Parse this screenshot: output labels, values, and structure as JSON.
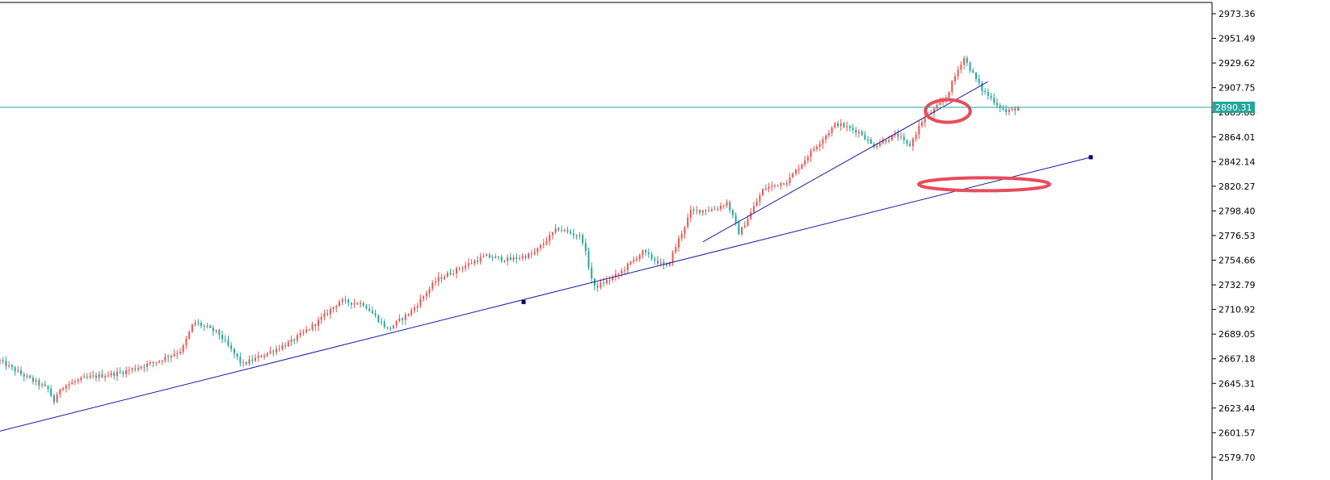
{
  "chart_data": {
    "type": "candlestick",
    "title": "",
    "xlabel": "",
    "ylabel": "",
    "y_axis_side": "right",
    "ylim": [
      2568,
      2985
    ],
    "y_ticks": [
      "2973.36",
      "2951.49",
      "2929.62",
      "2907.75",
      "2885.88",
      "2864.01",
      "2842.14",
      "2820.27",
      "2798.40",
      "2776.53",
      "2754.66",
      "2732.79",
      "2710.92",
      "2689.05",
      "2667.18",
      "2645.31",
      "2623.44",
      "2601.57",
      "2579.70"
    ],
    "current_price": {
      "label": "2890.31",
      "value": 2890.31
    },
    "colors": {
      "up": "#ef5350",
      "down": "#26a69a",
      "trendline": "#1a1aa0",
      "price_line": "#26a69a",
      "highlight_ellipse": "#e84c5a",
      "axis": "#000000"
    },
    "grid": false,
    "series_waypoints": [
      [
        0,
        2665
      ],
      [
        0.02,
        2652
      ],
      [
        0.04,
        2640
      ],
      [
        0.045,
        2628
      ],
      [
        0.05,
        2642
      ],
      [
        0.07,
        2650
      ],
      [
        0.1,
        2655
      ],
      [
        0.13,
        2665
      ],
      [
        0.15,
        2675
      ],
      [
        0.16,
        2700
      ],
      [
        0.18,
        2690
      ],
      [
        0.2,
        2662
      ],
      [
        0.22,
        2672
      ],
      [
        0.24,
        2682
      ],
      [
        0.26,
        2698
      ],
      [
        0.28,
        2718
      ],
      [
        0.3,
        2716
      ],
      [
        0.32,
        2693
      ],
      [
        0.34,
        2710
      ],
      [
        0.36,
        2737
      ],
      [
        0.38,
        2748
      ],
      [
        0.4,
        2758
      ],
      [
        0.42,
        2755
      ],
      [
        0.44,
        2760
      ],
      [
        0.46,
        2783
      ],
      [
        0.48,
        2775
      ],
      [
        0.49,
        2730
      ],
      [
        0.51,
        2742
      ],
      [
        0.53,
        2762
      ],
      [
        0.55,
        2748
      ],
      [
        0.57,
        2798
      ],
      [
        0.59,
        2800
      ],
      [
        0.6,
        2806
      ],
      [
        0.61,
        2778
      ],
      [
        0.63,
        2818
      ],
      [
        0.65,
        2825
      ],
      [
        0.67,
        2852
      ],
      [
        0.69,
        2876
      ],
      [
        0.71,
        2868
      ],
      [
        0.72,
        2856
      ],
      [
        0.74,
        2866
      ],
      [
        0.75,
        2855
      ],
      [
        0.76,
        2877
      ],
      [
        0.78,
        2898
      ],
      [
        0.795,
        2935
      ],
      [
        0.81,
        2906
      ],
      [
        0.83,
        2886
      ],
      [
        0.84,
        2890
      ]
    ],
    "candle_count": 340,
    "trendlines": [
      {
        "name": "long-term-support",
        "x0": 0,
        "y0": 2603,
        "x1": 0.9,
        "y1": 2846
      },
      {
        "name": "short-term-support",
        "x0": 0.58,
        "y0": 2771,
        "x1": 0.815,
        "y1": 2913
      }
    ],
    "anchor_points": [
      {
        "x": 0.432,
        "y": 2717.5
      },
      {
        "x": 0.9,
        "y": 2846
      }
    ],
    "highlights": [
      {
        "cx": 0.782,
        "cy": 2887,
        "rx_frac": 0.0185,
        "ry": 14
      },
      {
        "cx": 0.812,
        "cy": 2822,
        "rx_frac": 0.054,
        "ry": 8
      }
    ]
  }
}
